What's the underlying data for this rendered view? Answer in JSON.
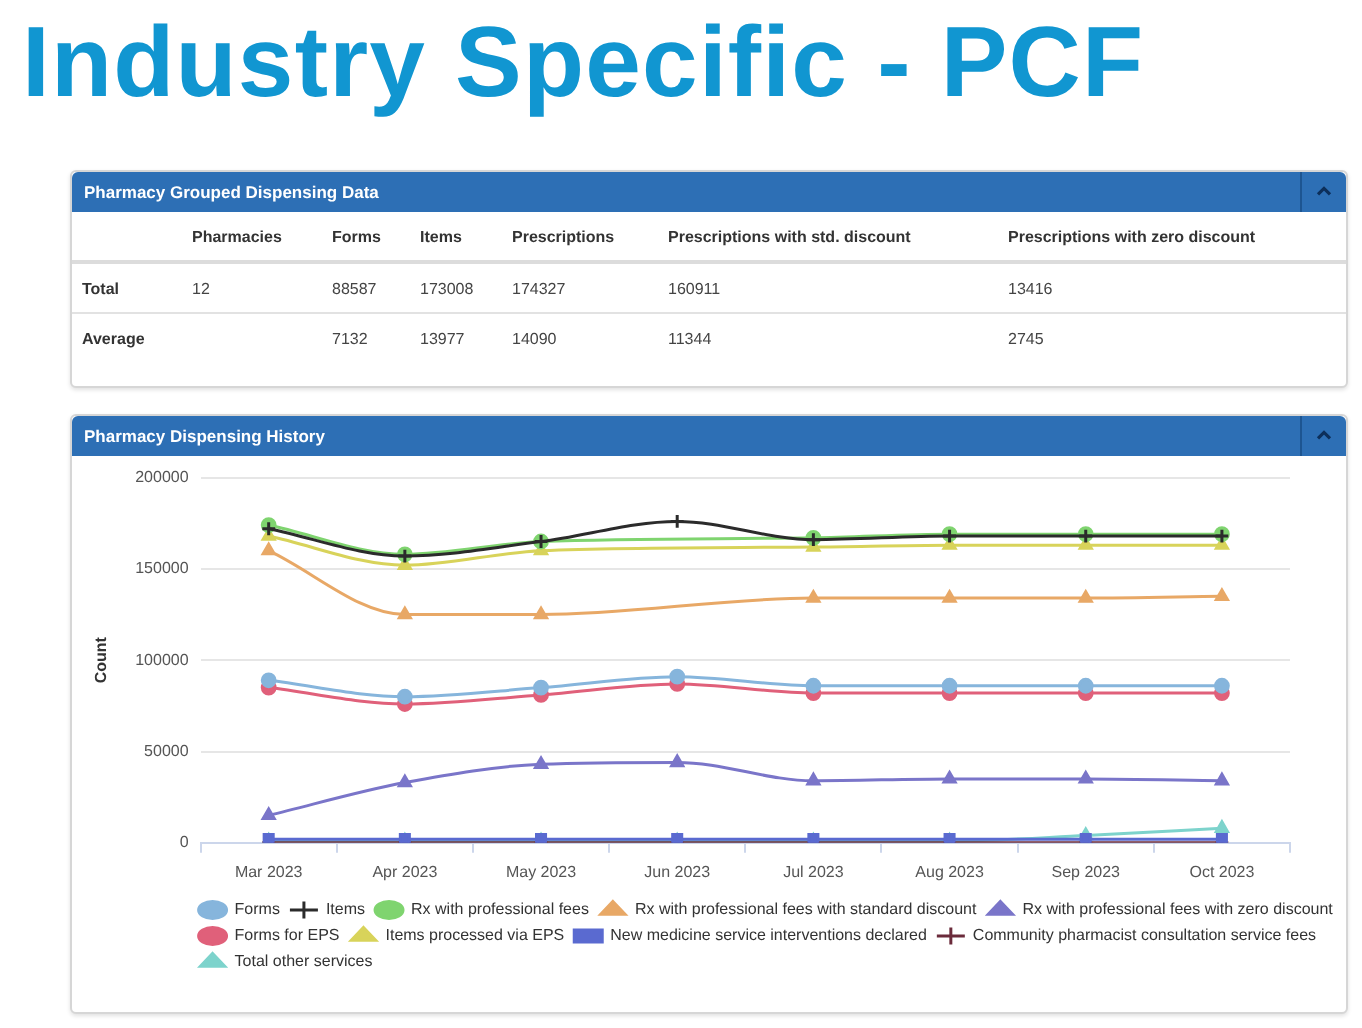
{
  "chart_data": [
    {
      "type": "other",
      "title": "Industry Specific - PCF",
      "subtitle": "Pharmacy Grouped Dispensing Data",
      "categories": [
        "Pharmacies",
        "Forms",
        "Items",
        "Prescriptions",
        "Prescriptions with std. discount",
        "Prescriptions with zero discount"
      ],
      "y_categories": [
        "Total",
        "Average"
      ],
      "cell_labels": [
        [
          "12",
          "88587",
          "173008",
          "174327",
          "160911",
          "13416"
        ],
        [
          null,
          "7132",
          "13977",
          "14090",
          "11344",
          "2745"
        ]
      ]
    },
    {
      "type": "line",
      "title": "Pharmacy Dispensing History",
      "ylabel": "Count",
      "categories": [
        "Mar 2023",
        "Apr 2023",
        "May 2023",
        "Jun 2023",
        "Jul 2023",
        "Aug 2023",
        "Sep 2023",
        "Oct 2023"
      ],
      "ylim": [
        0,
        200000
      ],
      "yticks": [
        0,
        50000,
        100000,
        150000,
        200000
      ],
      "grid": "y",
      "legend": "bottom",
      "series": [
        {
          "name": "Forms",
          "color": "#86b5dc",
          "marker": "circle",
          "values": [
            89000,
            80000,
            85000,
            91000,
            86000,
            86000,
            86000,
            86000
          ]
        },
        {
          "name": "Items",
          "color": "#2b2b2b",
          "marker": "cross",
          "values": [
            172000,
            157000,
            165000,
            176000,
            166000,
            168000,
            168000,
            168000
          ]
        },
        {
          "name": "Rx with professional fees",
          "color": "#7fd46f",
          "marker": "circle",
          "values": [
            174000,
            158000,
            165000,
            null,
            167000,
            169000,
            169000,
            169000
          ]
        },
        {
          "name": "Rx with professional fees with standard discount",
          "color": "#e8a866",
          "marker": "triangle",
          "values": [
            160000,
            125000,
            125000,
            null,
            134000,
            134000,
            134000,
            135000
          ]
        },
        {
          "name": "Rx with professional fees with zero discount",
          "color": "#7a75c9",
          "marker": "triangle",
          "values": [
            15000,
            33000,
            43000,
            44000,
            34000,
            35000,
            35000,
            34000
          ]
        },
        {
          "name": "Forms for EPS",
          "color": "#e0607a",
          "marker": "circle",
          "values": [
            85000,
            76000,
            81000,
            87000,
            82000,
            82000,
            82000,
            82000
          ]
        },
        {
          "name": "Items processed via EPS",
          "color": "#d8d35a",
          "marker": "triangle",
          "values": [
            168000,
            152000,
            160000,
            null,
            162000,
            163000,
            163000,
            163000
          ]
        },
        {
          "name": "New medicine service interventions declared",
          "color": "#5a6ad0",
          "marker": "square",
          "values": [
            2000,
            2000,
            2000,
            2000,
            2000,
            2000,
            2000,
            2000
          ]
        },
        {
          "name": "Community pharmacist consultation service fees",
          "color": "#6b2b3b",
          "marker": "cross",
          "values": [
            0,
            0,
            0,
            0,
            0,
            0,
            0,
            0
          ]
        },
        {
          "name": "Total other services",
          "color": "#7dd3cc",
          "marker": "triangle",
          "values": [
            1000,
            1000,
            1000,
            1000,
            1000,
            1000,
            4000,
            8000
          ]
        }
      ]
    }
  ]
}
